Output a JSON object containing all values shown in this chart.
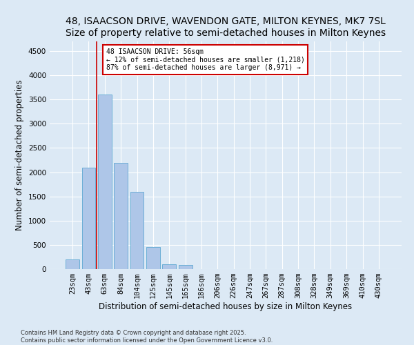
{
  "title1": "48, ISAACSON DRIVE, WAVENDON GATE, MILTON KEYNES, MK7 7SL",
  "title2": "Size of property relative to semi-detached houses in Milton Keynes",
  "xlabel": "Distribution of semi-detached houses by size in Milton Keynes",
  "ylabel": "Number of semi-detached properties",
  "categories": [
    "23sqm",
    "43sqm",
    "63sqm",
    "84sqm",
    "104sqm",
    "125sqm",
    "145sqm",
    "165sqm",
    "186sqm",
    "206sqm",
    "226sqm",
    "247sqm",
    "267sqm",
    "287sqm",
    "308sqm",
    "328sqm",
    "349sqm",
    "369sqm",
    "410sqm",
    "430sqm"
  ],
  "values": [
    200,
    2100,
    3600,
    2200,
    1600,
    450,
    100,
    80,
    0,
    0,
    0,
    0,
    0,
    0,
    0,
    0,
    0,
    0,
    0,
    0
  ],
  "bar_color": "#aec6e8",
  "bar_edge_color": "#6baed6",
  "annotation_title": "48 ISAACSON DRIVE: 56sqm",
  "annotation_line1": "← 12% of semi-detached houses are smaller (1,218)",
  "annotation_line2": "87% of semi-detached houses are larger (8,971) →",
  "vline_color": "#cc0000",
  "vline_x": 1.5,
  "box_color": "#cc0000",
  "ylim": [
    0,
    4700
  ],
  "yticks": [
    0,
    500,
    1000,
    1500,
    2000,
    2500,
    3000,
    3500,
    4000,
    4500
  ],
  "background_color": "#dce9f5",
  "plot_bg_color": "#dce9f5",
  "footnote": "Contains HM Land Registry data © Crown copyright and database right 2025.\nContains public sector information licensed under the Open Government Licence v3.0.",
  "title1_fontsize": 10,
  "title2_fontsize": 9,
  "xlabel_fontsize": 8.5,
  "ylabel_fontsize": 8.5,
  "tick_fontsize": 7.5,
  "annotation_fontsize": 7,
  "footnote_fontsize": 6
}
